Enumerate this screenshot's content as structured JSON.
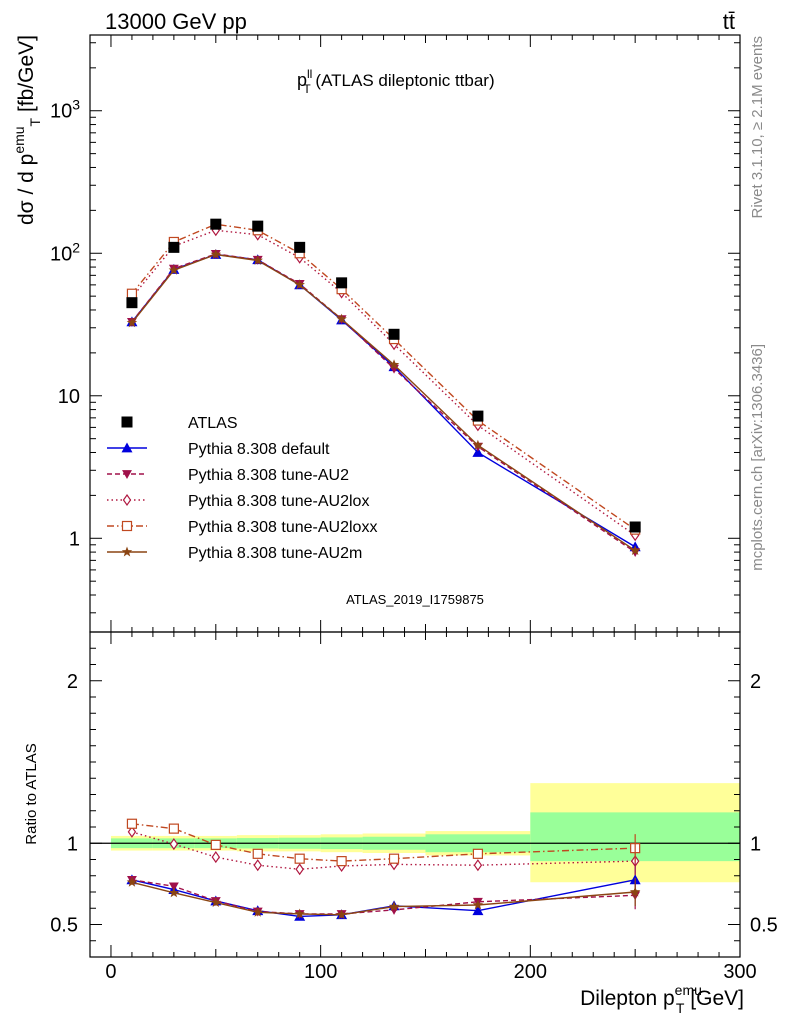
{
  "header": {
    "left": "13000 GeV pp",
    "right": "tt̄"
  },
  "side_labels": {
    "rivet": "Rivet 3.1.10, ≥ 2.1M events",
    "mcplots": "mcplots.cern.ch [arXiv:1306.3436]"
  },
  "chart_data": [
    {
      "type": "line",
      "title_main": "p",
      "title_sup": "ll",
      "title_sub": "T",
      "title_rest": " (ATLAS dileptonic ttbar)",
      "analysis_label": "ATLAS_2019_I1759875",
      "ylabel_main": "dσ / d p",
      "ylabel_sup": "emu",
      "ylabel_sub": "T",
      "ylabel_unit": " [fb/GeV]",
      "yscale": "log",
      "ylim": [
        0.22,
        3400
      ],
      "xlim": [
        -10,
        300
      ],
      "yticks": [
        {
          "v": 1,
          "label": "1"
        },
        {
          "v": 10,
          "label": "10"
        },
        {
          "v": 100,
          "label": "10",
          "sup": "2"
        },
        {
          "v": 1000,
          "label": "10",
          "sup": "3"
        }
      ],
      "x": [
        10,
        30,
        50,
        70,
        90,
        110,
        135,
        175,
        250
      ],
      "atlas_values": [
        45,
        110,
        160,
        155,
        110,
        62,
        27,
        7.2,
        1.2
      ],
      "series": [
        {
          "name": "Pythia 8.308 default",
          "color": "#0000dd",
          "dash": "",
          "marker": "triangle-up",
          "values": [
            33,
            77,
            98,
            90,
            60,
            34,
            16,
            4.0,
            0.87
          ]
        },
        {
          "name": "Pythia 8.308 tune-AU2",
          "color": "#a0104a",
          "dash": "5,3",
          "marker": "triangle-down",
          "values": [
            33,
            78,
            99,
            90,
            61,
            34.5,
            15.5,
            4.4,
            0.8
          ]
        },
        {
          "name": "Pythia 8.308 tune-AU2lox",
          "color": "#b01840",
          "dash": "1.5,3",
          "marker": "diamond-open",
          "values": [
            49,
            112,
            145,
            135,
            93,
            53,
            23,
            6.2,
            1.05
          ]
        },
        {
          "name": "Pythia 8.308 tune-AU2loxx",
          "color": "#c04820",
          "dash": "7,3,1.5,3",
          "marker": "square-open",
          "values": [
            52,
            120,
            160,
            145,
            100,
            56,
            25,
            6.7,
            1.15
          ]
        },
        {
          "name": "Pythia 8.308 tune-AU2m",
          "color": "#8b4513",
          "dash": "",
          "marker": "star",
          "values": [
            32.5,
            76,
            98,
            89,
            60,
            34.5,
            16.5,
            4.5,
            0.82
          ]
        }
      ],
      "legend": {
        "data_label": "ATLAS",
        "placement": "lower-left"
      }
    },
    {
      "type": "line",
      "ylabel": "Ratio to ATLAS",
      "xlabel_main": "Dilepton p",
      "xlabel_sub": "T",
      "xlabel_sup": "emu",
      "xlabel_unit": " [GeV]",
      "ylim": [
        0.3,
        2.3
      ],
      "xlim": [
        -10,
        300
      ],
      "yticks": [
        0.5,
        1,
        2
      ],
      "xticks": [
        0,
        100,
        200,
        300
      ],
      "bins": [
        [
          0,
          20
        ],
        [
          20,
          40
        ],
        [
          40,
          60
        ],
        [
          60,
          80
        ],
        [
          80,
          100
        ],
        [
          100,
          120
        ],
        [
          120,
          150
        ],
        [
          150,
          200
        ],
        [
          200,
          300
        ]
      ],
      "band_stat_syst": [
        [
          0.955,
          1.045
        ],
        [
          0.955,
          1.045
        ],
        [
          0.955,
          1.045
        ],
        [
          0.95,
          1.05
        ],
        [
          0.95,
          1.05
        ],
        [
          0.945,
          1.055
        ],
        [
          0.94,
          1.06
        ],
        [
          0.925,
          1.075
        ],
        [
          0.76,
          1.37
        ]
      ],
      "band_stat": [
        [
          0.97,
          1.03
        ],
        [
          0.97,
          1.03
        ],
        [
          0.97,
          1.03
        ],
        [
          0.968,
          1.032
        ],
        [
          0.966,
          1.034
        ],
        [
          0.964,
          1.036
        ],
        [
          0.96,
          1.04
        ],
        [
          0.945,
          1.055
        ],
        [
          0.89,
          1.19
        ]
      ],
      "x": [
        10,
        30,
        50,
        70,
        90,
        110,
        135,
        175,
        250
      ],
      "series": [
        {
          "name": "Pythia 8.308 default",
          "values": [
            0.775,
            0.715,
            0.645,
            0.585,
            0.55,
            0.56,
            0.615,
            0.585,
            0.775
          ]
        },
        {
          "name": "Pythia 8.308 tune-AU2",
          "values": [
            0.775,
            0.735,
            0.645,
            0.58,
            0.565,
            0.565,
            0.59,
            0.64,
            0.68
          ]
        },
        {
          "name": "Pythia 8.308 tune-AU2lox",
          "values": [
            1.07,
            0.995,
            0.915,
            0.865,
            0.84,
            0.86,
            0.87,
            0.865,
            0.89
          ]
        },
        {
          "name": "Pythia 8.308 tune-AU2loxx",
          "values": [
            1.12,
            1.09,
            0.99,
            0.935,
            0.905,
            0.89,
            0.905,
            0.935,
            0.97
          ]
        },
        {
          "name": "Pythia 8.308 tune-AU2m",
          "values": [
            0.76,
            0.695,
            0.635,
            0.575,
            0.565,
            0.56,
            0.61,
            0.62,
            0.7
          ]
        }
      ]
    }
  ]
}
